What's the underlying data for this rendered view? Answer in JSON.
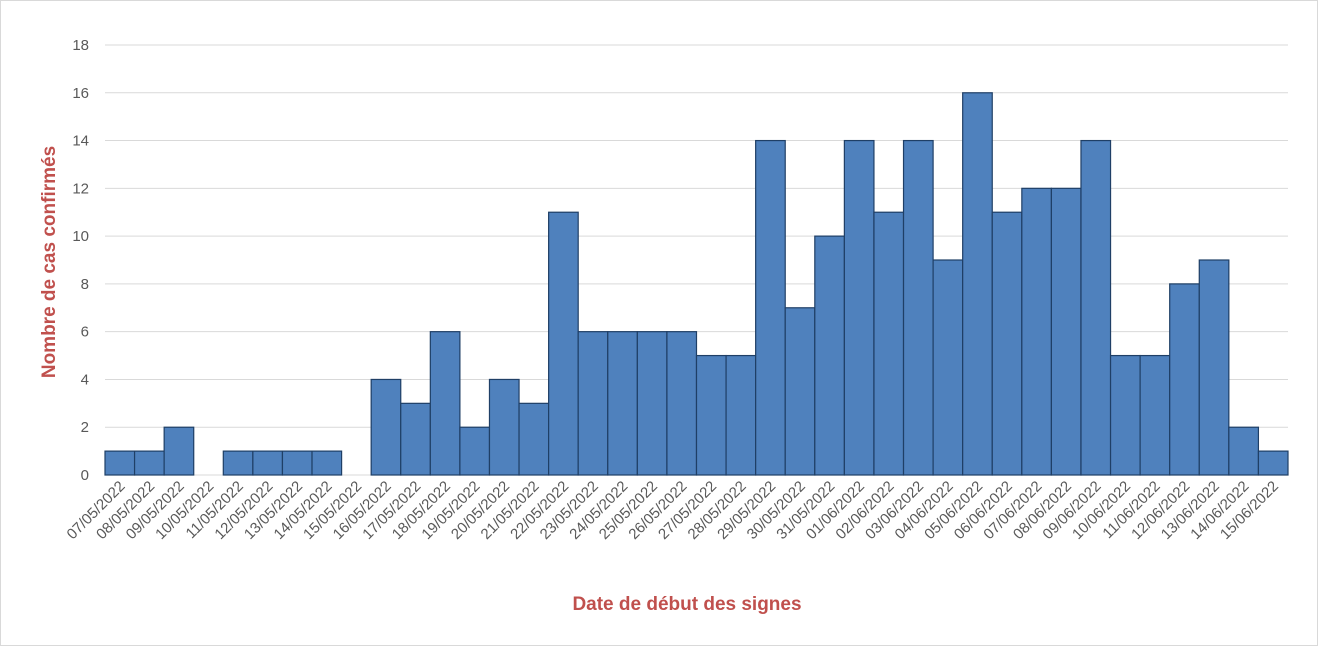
{
  "chart_data": {
    "type": "bar",
    "x_label": "Date de début des signes",
    "y_label": "Nombre de cas confirmés",
    "categories": [
      "07/05/2022",
      "08/05/2022",
      "09/05/2022",
      "10/05/2022",
      "11/05/2022",
      "12/05/2022",
      "13/05/2022",
      "14/05/2022",
      "15/05/2022",
      "16/05/2022",
      "17/05/2022",
      "18/05/2022",
      "19/05/2022",
      "20/05/2022",
      "21/05/2022",
      "22/05/2022",
      "23/05/2022",
      "24/05/2022",
      "25/05/2022",
      "26/05/2022",
      "27/05/2022",
      "28/05/2022",
      "29/05/2022",
      "30/05/2022",
      "31/05/2022",
      "01/06/2022",
      "02/06/2022",
      "03/06/2022",
      "04/06/2022",
      "05/06/2022",
      "06/06/2022",
      "07/06/2022",
      "08/06/2022",
      "09/06/2022",
      "10/06/2022",
      "11/06/2022",
      "12/06/2022",
      "13/06/2022",
      "14/06/2022",
      "15/06/2022"
    ],
    "values": [
      1,
      1,
      2,
      0,
      1,
      1,
      1,
      1,
      0,
      4,
      3,
      6,
      2,
      4,
      3,
      11,
      6,
      6,
      6,
      6,
      5,
      5,
      14,
      7,
      10,
      14,
      11,
      14,
      9,
      16,
      11,
      12,
      12,
      14,
      5,
      5,
      8,
      9,
      2,
      1
    ],
    "color": "#4f81bd",
    "ylim": [
      0,
      18
    ],
    "yticks": [
      0,
      2,
      4,
      6,
      8,
      10,
      12,
      14,
      16,
      18
    ],
    "grid": true
  }
}
